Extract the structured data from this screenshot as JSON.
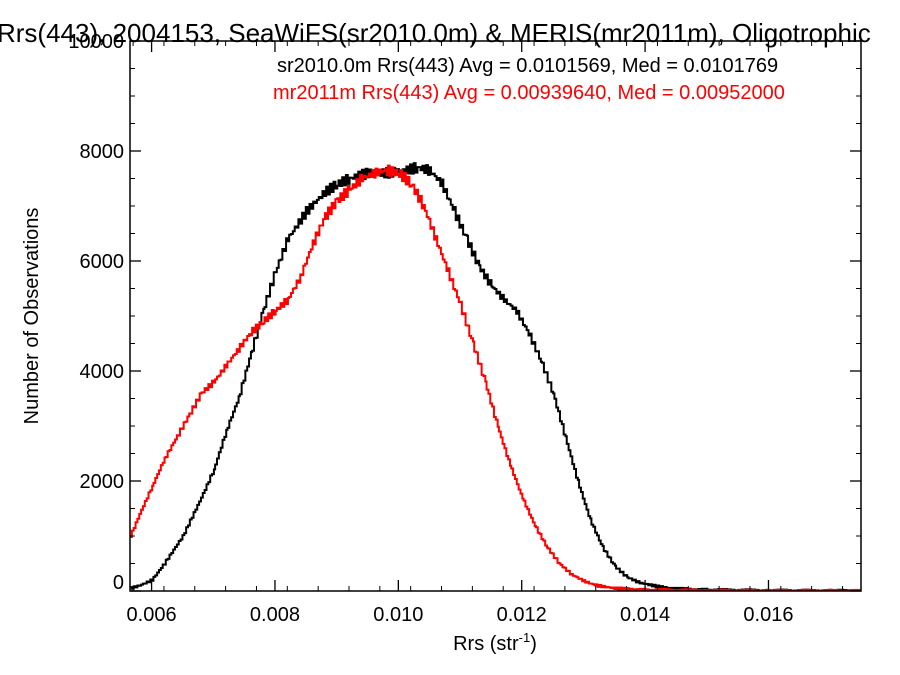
{
  "chart_data": {
    "type": "line",
    "title": "Rrs(443), 2004153, SeaWiFS(sr2010.0m) & MERIS(mr2011m), Oligotrophic",
    "xlabel": "Rrs (str",
    "xlabel_sup": "-1",
    "xlabel_close": ")",
    "ylabel": "Number of Observations",
    "xlim": [
      0.00565,
      0.0175
    ],
    "ylim": [
      0,
      10000
    ],
    "x_ticks": [
      0.006,
      0.008,
      0.01,
      0.012,
      0.014,
      0.016
    ],
    "x_tick_labels": [
      "0.006",
      "0.008",
      "0.010",
      "0.012",
      "0.014",
      "0.016"
    ],
    "y_ticks": [
      0,
      2000,
      4000,
      6000,
      8000,
      10000
    ],
    "y_tick_labels": [
      "0",
      "2000",
      "4000",
      "6000",
      "8000",
      "10000"
    ],
    "grid": false,
    "series": [
      {
        "name": "sr2010.0m",
        "color": "#000000",
        "annotation": "sr2010.0m Rrs(443) Avg = 0.0101569, Med = 0.0101769",
        "points": [
          [
            0.00565,
            50
          ],
          [
            0.0058,
            100
          ],
          [
            0.006,
            200
          ],
          [
            0.0062,
            500
          ],
          [
            0.0065,
            1000
          ],
          [
            0.0068,
            1700
          ],
          [
            0.007,
            2200
          ],
          [
            0.0072,
            2900
          ],
          [
            0.0074,
            3500
          ],
          [
            0.0076,
            4300
          ],
          [
            0.0078,
            5100
          ],
          [
            0.008,
            5800
          ],
          [
            0.0082,
            6400
          ],
          [
            0.0085,
            6900
          ],
          [
            0.0088,
            7250
          ],
          [
            0.009,
            7400
          ],
          [
            0.0092,
            7500
          ],
          [
            0.0095,
            7600
          ],
          [
            0.0098,
            7600
          ],
          [
            0.0101,
            7650
          ],
          [
            0.0103,
            7700
          ],
          [
            0.0105,
            7650
          ],
          [
            0.0107,
            7400
          ],
          [
            0.0109,
            6900
          ],
          [
            0.0111,
            6400
          ],
          [
            0.0113,
            5900
          ],
          [
            0.0115,
            5550
          ],
          [
            0.0117,
            5300
          ],
          [
            0.0119,
            5100
          ],
          [
            0.0121,
            4700
          ],
          [
            0.0123,
            4200
          ],
          [
            0.0125,
            3600
          ],
          [
            0.0127,
            2800
          ],
          [
            0.0129,
            2000
          ],
          [
            0.0131,
            1300
          ],
          [
            0.0133,
            800
          ],
          [
            0.0135,
            450
          ],
          [
            0.0137,
            250
          ],
          [
            0.0139,
            150
          ],
          [
            0.0142,
            80
          ],
          [
            0.0145,
            40
          ],
          [
            0.015,
            20
          ],
          [
            0.016,
            8
          ],
          [
            0.017,
            3
          ],
          [
            0.0175,
            2
          ]
        ]
      },
      {
        "name": "mr2011m",
        "color": "#ff0000",
        "annotation": "mr2011m Rrs(443) Avg = 0.00939640, Med = 0.00952000",
        "points": [
          [
            0.00565,
            1000
          ],
          [
            0.0058,
            1400
          ],
          [
            0.006,
            1900
          ],
          [
            0.0062,
            2400
          ],
          [
            0.0064,
            2800
          ],
          [
            0.0066,
            3200
          ],
          [
            0.0068,
            3600
          ],
          [
            0.007,
            3800
          ],
          [
            0.0072,
            4100
          ],
          [
            0.0074,
            4400
          ],
          [
            0.0076,
            4700
          ],
          [
            0.0078,
            4900
          ],
          [
            0.008,
            5100
          ],
          [
            0.0082,
            5300
          ],
          [
            0.0084,
            5700
          ],
          [
            0.0086,
            6300
          ],
          [
            0.0088,
            6800
          ],
          [
            0.009,
            7100
          ],
          [
            0.0092,
            7300
          ],
          [
            0.0094,
            7500
          ],
          [
            0.0096,
            7600
          ],
          [
            0.0098,
            7650
          ],
          [
            0.01,
            7600
          ],
          [
            0.0102,
            7400
          ],
          [
            0.0104,
            7000
          ],
          [
            0.0106,
            6400
          ],
          [
            0.0108,
            5800
          ],
          [
            0.011,
            5200
          ],
          [
            0.0112,
            4500
          ],
          [
            0.0114,
            3800
          ],
          [
            0.0116,
            3000
          ],
          [
            0.0118,
            2300
          ],
          [
            0.012,
            1700
          ],
          [
            0.0122,
            1200
          ],
          [
            0.0124,
            800
          ],
          [
            0.0126,
            500
          ],
          [
            0.0128,
            300
          ],
          [
            0.013,
            180
          ],
          [
            0.0132,
            100
          ],
          [
            0.0135,
            50
          ],
          [
            0.014,
            20
          ],
          [
            0.015,
            8
          ],
          [
            0.016,
            3
          ],
          [
            0.0175,
            1
          ]
        ]
      }
    ]
  }
}
